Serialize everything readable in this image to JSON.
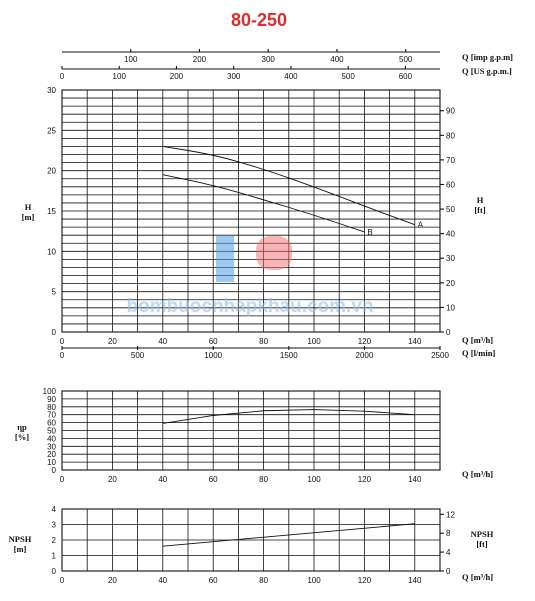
{
  "chart_data": [
    {
      "type": "line",
      "title": "80-250",
      "top_axes": [
        {
          "label": "Q [imp g.p.m]",
          "ticks": [
            "100",
            "200",
            "300",
            "400",
            "500"
          ]
        },
        {
          "label": "Q [US g.p.m.]",
          "ticks": [
            "0",
            "100",
            "200",
            "300",
            "400",
            "500",
            "600"
          ]
        }
      ],
      "xlabel": "Q [m³/h]",
      "x_ticks": [
        "0",
        "20",
        "40",
        "60",
        "80",
        "100",
        "120",
        "140"
      ],
      "x2label": "Q [l/min]",
      "x2_ticks": [
        "0",
        "500",
        "1000",
        "1500",
        "2000",
        "2500"
      ],
      "ylabel": "H\n[m]",
      "y_ticks": [
        "0",
        "5",
        "10",
        "15",
        "20",
        "25",
        "30"
      ],
      "y2label": "H\n[ft]",
      "y2_ticks": [
        "0",
        "10",
        "20",
        "30",
        "40",
        "50",
        "60",
        "70",
        "80",
        "90"
      ],
      "xlim": [
        0,
        150
      ],
      "ylim": [
        0,
        30
      ],
      "grid": true,
      "series": [
        {
          "name": "A",
          "x": [
            40,
            60,
            80,
            100,
            120,
            140
          ],
          "y": [
            23.0,
            22.0,
            20.2,
            18.0,
            15.6,
            13.3
          ]
        },
        {
          "name": "B",
          "x": [
            40,
            60,
            80,
            100,
            120
          ],
          "y": [
            19.5,
            18.2,
            16.4,
            14.5,
            12.4
          ]
        }
      ],
      "watermark": "bombuocnhapkhau.com.vn"
    },
    {
      "type": "line",
      "ylabel": "ηp\n[%]",
      "xlabel": "Q [m³/h]",
      "x_ticks": [
        "0",
        "20",
        "40",
        "60",
        "80",
        "100",
        "120",
        "140"
      ],
      "y_ticks": [
        "0",
        "10",
        "20",
        "30",
        "40",
        "50",
        "60",
        "70",
        "80",
        "90",
        "100"
      ],
      "xlim": [
        0,
        150
      ],
      "ylim": [
        0,
        100
      ],
      "grid": true,
      "series": [
        {
          "x": [
            40,
            60,
            80,
            100,
            120,
            140
          ],
          "y": [
            59,
            69,
            75,
            76.5,
            74.5,
            70
          ]
        }
      ]
    },
    {
      "type": "line",
      "ylabel": "NPSH\n[m]",
      "y2label": "NPSH\n[ft]",
      "xlabel": "Q [m³/h]",
      "x_ticks": [
        "0",
        "20",
        "40",
        "60",
        "80",
        "100",
        "120",
        "140"
      ],
      "y_ticks": [
        "0",
        "1",
        "2",
        "3",
        "4"
      ],
      "y2_ticks": [
        "0",
        "4",
        "8",
        "12"
      ],
      "xlim": [
        0,
        150
      ],
      "ylim": [
        0,
        4
      ],
      "grid": true,
      "series": [
        {
          "x": [
            40,
            140
          ],
          "y": [
            1.6,
            3.05
          ]
        }
      ]
    }
  ]
}
